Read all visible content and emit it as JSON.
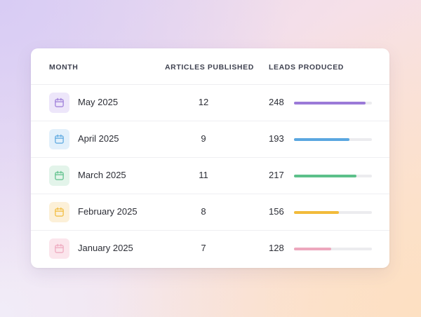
{
  "table": {
    "headers": {
      "month": "MONTH",
      "articles": "ARTICLES PUBLISHED",
      "leads": "LEADS PRODUCED"
    },
    "max_leads": 270,
    "rows": [
      {
        "month": "May 2025",
        "articles": "12",
        "leads": "248",
        "leads_value": 248,
        "accent": "#9b7ad8",
        "icon_bg": "#ede6fa",
        "icon": "calendar-icon"
      },
      {
        "month": "April 2025",
        "articles": "9",
        "leads": "193",
        "leads_value": 193,
        "accent": "#5aa7e0",
        "icon_bg": "#e2f0fb",
        "icon": "calendar-icon"
      },
      {
        "month": "March 2025",
        "articles": "11",
        "leads": "217",
        "leads_value": 217,
        "accent": "#5cc08a",
        "icon_bg": "#e3f4ea",
        "icon": "calendar-icon"
      },
      {
        "month": "February 2025",
        "articles": "8",
        "leads": "156",
        "leads_value": 156,
        "accent": "#f2bb3a",
        "icon_bg": "#fcf0d8",
        "icon": "calendar-icon"
      },
      {
        "month": "January 2025",
        "articles": "7",
        "leads": "128",
        "leads_value": 128,
        "accent": "#eda7bd",
        "icon_bg": "#fbe5ec",
        "icon": "calendar-icon"
      }
    ]
  }
}
